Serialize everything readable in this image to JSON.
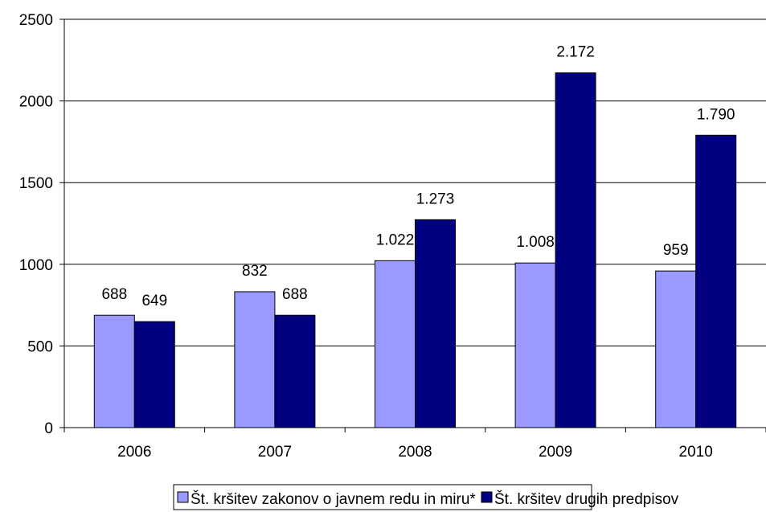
{
  "chart_data": {
    "type": "bar",
    "categories": [
      "2006",
      "2007",
      "2008",
      "2009",
      "2010"
    ],
    "series": [
      {
        "name": "Št. kršitev zakonov o javnem redu in miru*",
        "values": [
          688,
          832,
          1022,
          1008,
          959
        ],
        "labels": [
          "688",
          "832",
          "1.022",
          "1.008",
          "959"
        ],
        "color": "#9999ff"
      },
      {
        "name": "Št. kršitev drugih predpisov",
        "values": [
          649,
          688,
          1273,
          2172,
          1790
        ],
        "labels": [
          "649",
          "688",
          "1.273",
          "2.172",
          "1.790"
        ],
        "color": "#000080"
      }
    ],
    "ylim": [
      0,
      2500
    ],
    "yticks": [
      "0",
      "500",
      "1000",
      "1500",
      "2000",
      "2500"
    ],
    "ytick_values": [
      0,
      500,
      1000,
      1500,
      2000,
      2500
    ],
    "grid": true,
    "legend_position": "bottom"
  }
}
